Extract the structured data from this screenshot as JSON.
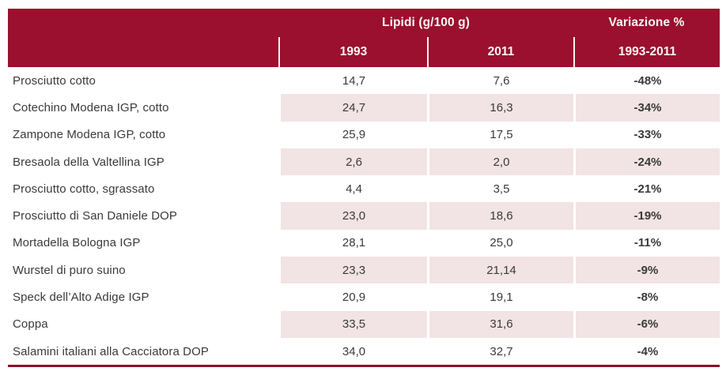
{
  "table": {
    "header": {
      "group_label": "Lipidi (g/100 g)",
      "variation_label": "Variazione %",
      "col_1993": "1993",
      "col_2011": "2011",
      "col_range": "1993-2011"
    },
    "rows": [
      {
        "label": "Prosciutto cotto",
        "v1993": "14,7",
        "v2011": "7,6",
        "var": "-48%"
      },
      {
        "label": "Cotechino Modena IGP, cotto",
        "v1993": "24,7",
        "v2011": "16,3",
        "var": "-34%"
      },
      {
        "label": "Zampone Modena IGP, cotto",
        "v1993": "25,9",
        "v2011": "17,5",
        "var": "-33%"
      },
      {
        "label": "Bresaola della Valtellina IGP",
        "v1993": "2,6",
        "v2011": "2,0",
        "var": "-24%"
      },
      {
        "label": "Prosciutto cotto, sgrassato",
        "v1993": "4,4",
        "v2011": "3,5",
        "var": "-21%"
      },
      {
        "label": "Prosciutto di San Daniele DOP",
        "v1993": "23,0",
        "v2011": "18,6",
        "var": "-19%"
      },
      {
        "label": "Mortadella Bologna IGP",
        "v1993": "28,1",
        "v2011": "25,0",
        "var": "-11%"
      },
      {
        "label": "Wurstel di puro suino",
        "v1993": "23,3",
        "v2011": "21,14",
        "var": "-9%"
      },
      {
        "label": "Speck dell’Alto Adige IGP",
        "v1993": "20,9",
        "v2011": "19,1",
        "var": "-8%"
      },
      {
        "label": "Coppa",
        "v1993": "33,5",
        "v2011": "31,6",
        "var": "-6%"
      },
      {
        "label": "Salamini italiani alla Cacciatora DOP",
        "v1993": "34,0",
        "v2011": "32,7",
        "var": "-4%"
      }
    ],
    "colors": {
      "header_bg": "#9a102e",
      "header_text": "#fdf6f7",
      "stripe_bg": "#f2e3e4",
      "body_text": "#3a3a3a",
      "rule_color": "#8f0e28"
    }
  },
  "chart_data": {
    "type": "table",
    "title": "Lipidi (g/100 g)",
    "categories": [
      "Prosciutto cotto",
      "Cotechino Modena IGP, cotto",
      "Zampone Modena IGP, cotto",
      "Bresaola della Valtellina IGP",
      "Prosciutto cotto, sgrassato",
      "Prosciutto di San Daniele DOP",
      "Mortadella Bologna IGP",
      "Wurstel di puro suino",
      "Speck dell’Alto Adige IGP",
      "Coppa",
      "Salamini italiani alla Cacciatora DOP"
    ],
    "series": [
      {
        "name": "1993",
        "values": [
          14.7,
          24.7,
          25.9,
          2.6,
          4.4,
          23.0,
          28.1,
          23.3,
          20.9,
          33.5,
          34.0
        ]
      },
      {
        "name": "2011",
        "values": [
          7.6,
          16.3,
          17.5,
          2.0,
          3.5,
          18.6,
          25.0,
          21.14,
          19.1,
          31.6,
          32.7
        ]
      },
      {
        "name": "Variazione % 1993-2011",
        "values": [
          -48,
          -34,
          -33,
          -24,
          -21,
          -19,
          -11,
          -9,
          -8,
          -6,
          -4
        ]
      }
    ]
  }
}
